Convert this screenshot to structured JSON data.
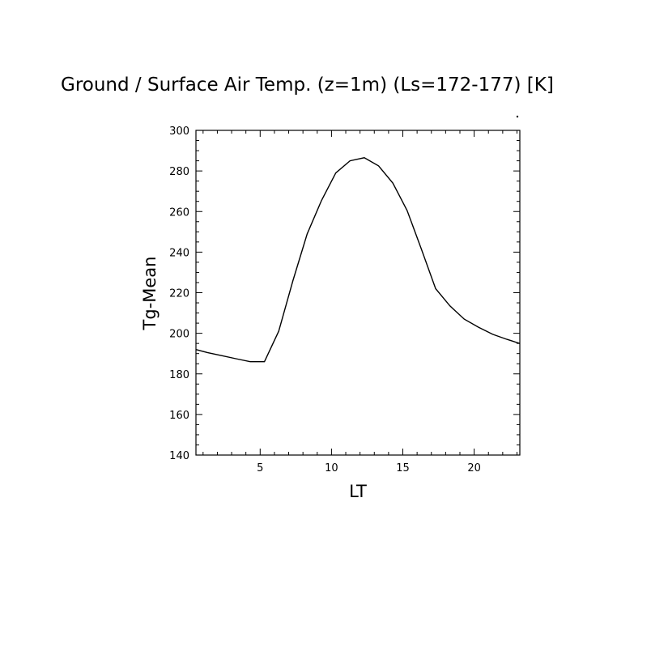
{
  "chart_data": {
    "type": "line",
    "title": "Ground / Surface Air Temp. (z=1m) (Ls=172-177) [K]",
    "xlabel": "LT",
    "ylabel": "Tg-Mean",
    "xlim": [
      0.5,
      23.2
    ],
    "ylim": [
      140,
      300
    ],
    "x_ticks": [
      5,
      10,
      15,
      20
    ],
    "y_ticks": [
      140,
      160,
      180,
      200,
      220,
      240,
      260,
      280,
      300
    ],
    "grid": false,
    "series": [
      {
        "color": "#000000",
        "x": [
          0.5,
          1.3,
          2.3,
          3.3,
          4.3,
          5.3,
          6.3,
          7.3,
          8.3,
          9.3,
          10.3,
          11.3,
          12.3,
          13.3,
          14.3,
          15.3,
          16.3,
          17.3,
          18.3,
          19.3,
          20.3,
          21.3,
          22.3,
          23.2
        ],
        "values": [
          192,
          190.5,
          189,
          187.5,
          186,
          186,
          201,
          226,
          249,
          265.5,
          279,
          285,
          286.5,
          282.5,
          274,
          260.5,
          241.5,
          222,
          213.5,
          207,
          203,
          199.5,
          197,
          195
        ]
      }
    ]
  }
}
